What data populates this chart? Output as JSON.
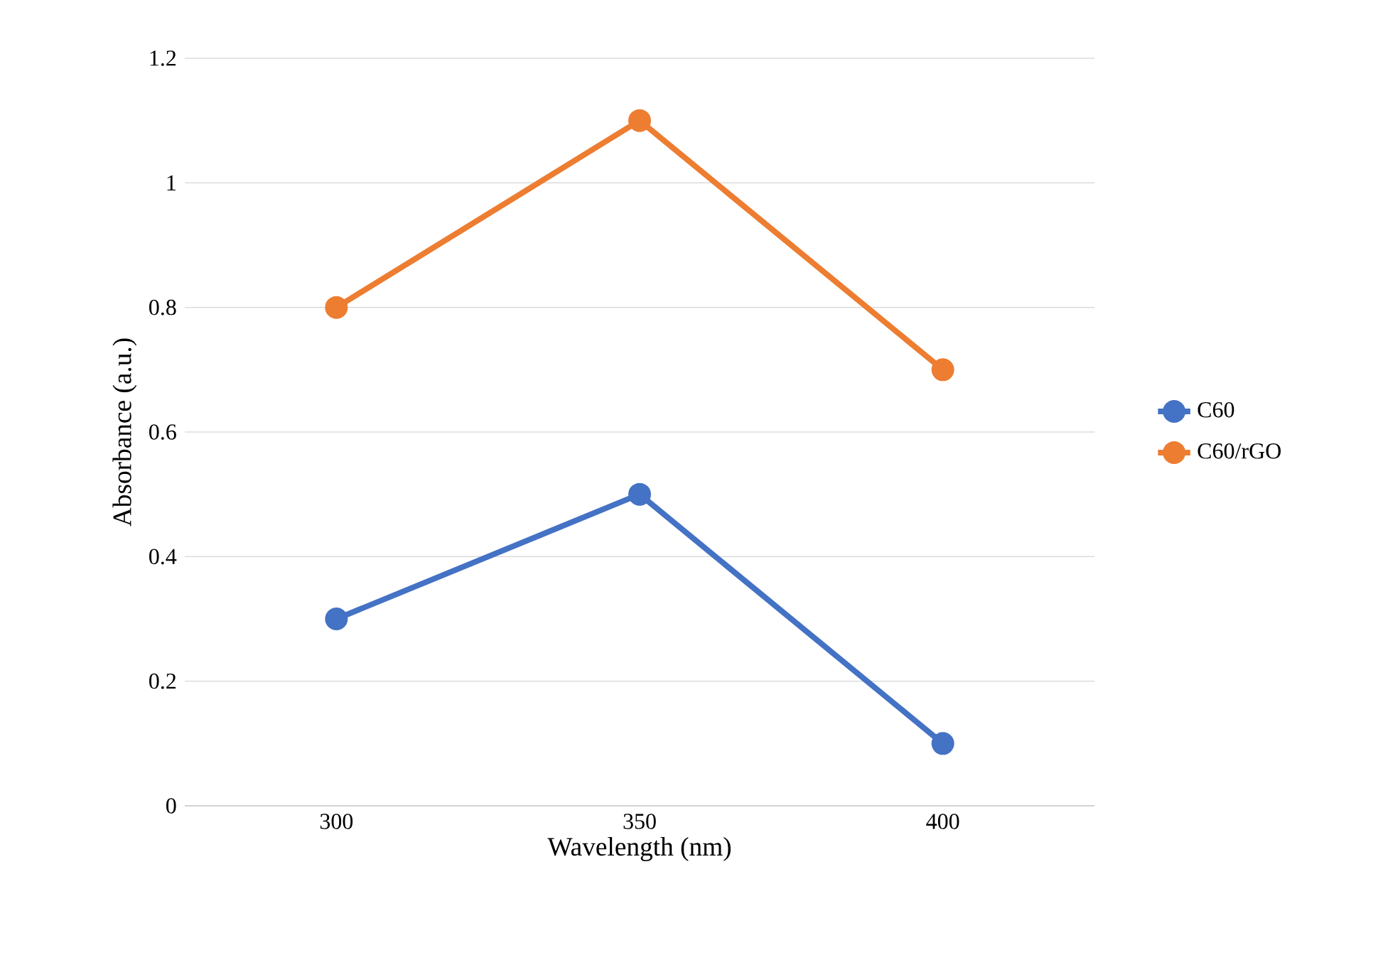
{
  "chart_data": {
    "type": "line",
    "xlabel": "Wavelength (nm)",
    "ylabel": "Absorbance (a.u.)",
    "categories": [
      "300",
      "350",
      "400"
    ],
    "series": [
      {
        "name": "C60",
        "color": "#4472c4",
        "values": [
          0.3,
          0.5,
          0.1
        ]
      },
      {
        "name": "C60/rGO",
        "color": "#ed7d31",
        "values": [
          0.8,
          1.1,
          0.7
        ]
      }
    ],
    "ylim": [
      0,
      1.2
    ],
    "yticks": [
      0,
      0.2,
      0.4,
      0.6,
      0.8,
      1,
      1.2
    ],
    "grid": "y",
    "legend": "right",
    "marker": "circle",
    "line_style": "solid"
  }
}
